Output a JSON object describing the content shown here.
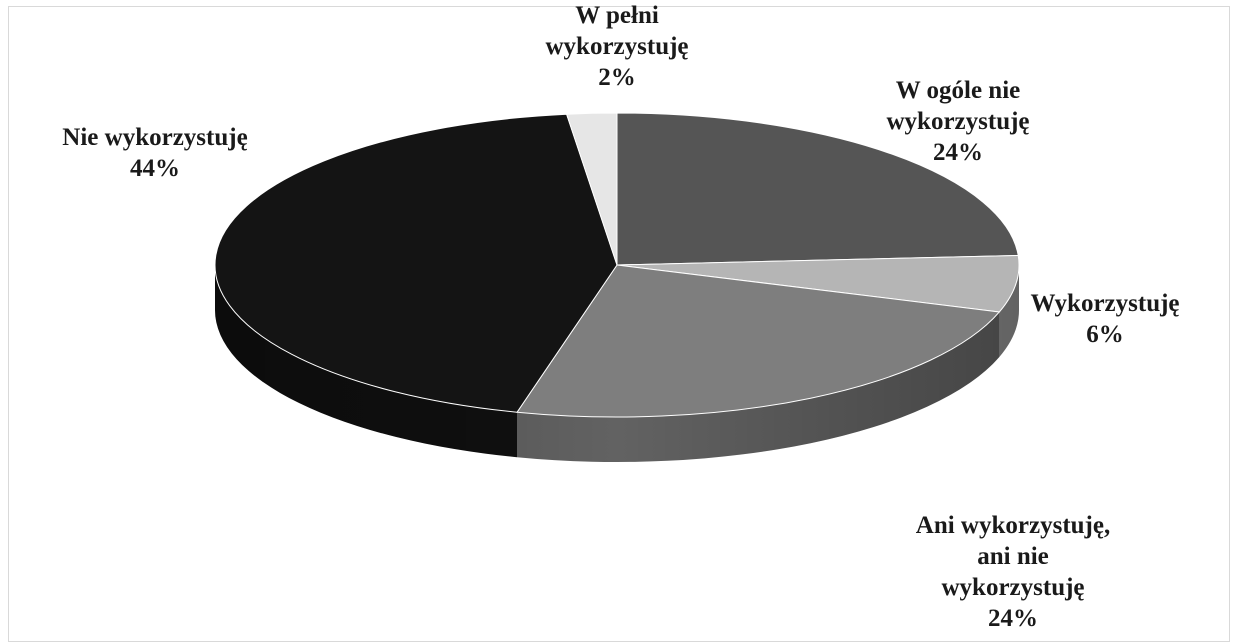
{
  "chart_data": {
    "type": "pie",
    "style": "3d",
    "categories": [
      "W ogóle nie wykorzystuję",
      "Wykorzystuję",
      "Ani wykorzystuję, ani nie wykorzystuję",
      "Nie wykorzystuję",
      "W pełni wykorzystuję"
    ],
    "values": [
      24,
      6,
      24,
      44,
      2
    ],
    "colors": [
      "#555555",
      "#b5b5b5",
      "#7e7e7e",
      "#141414",
      "#e6e6e6"
    ],
    "labels": [
      {
        "lines": [
          "W ogóle nie",
          "wykorzystuję",
          "24%"
        ]
      },
      {
        "lines": [
          "Wykorzystuję",
          "6%"
        ]
      },
      {
        "lines": [
          "Ani wykorzystuję,",
          "ani nie",
          "wykorzystuję",
          "24%"
        ]
      },
      {
        "lines": [
          "Nie wykorzystuję",
          "44%"
        ]
      },
      {
        "lines": [
          "W pełni",
          "wykorzystuję",
          "2%"
        ]
      }
    ],
    "legend": "none",
    "grid": false
  }
}
